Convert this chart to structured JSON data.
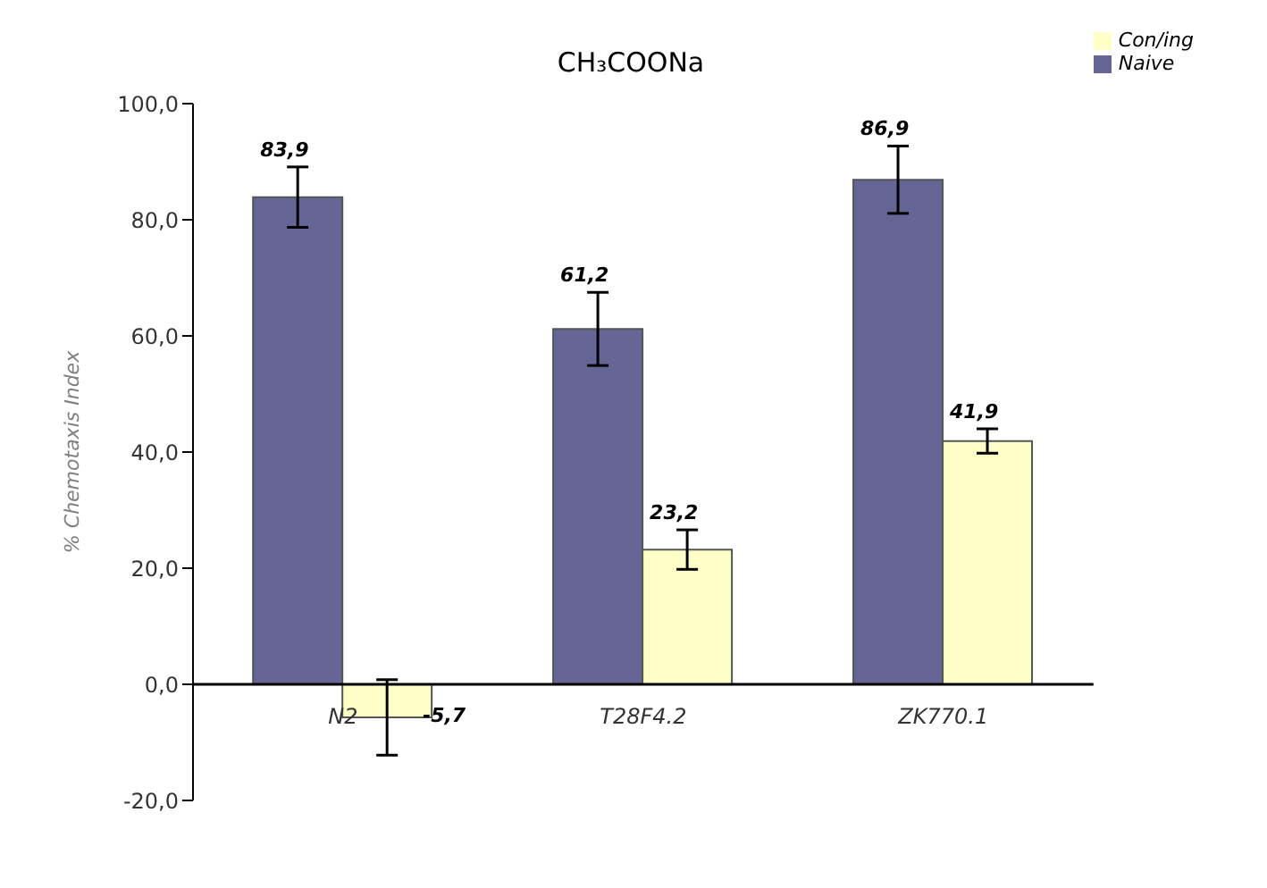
{
  "chart_data": {
    "type": "bar",
    "title": "CH₃COONa",
    "ylabel": "% Chemotaxis Index",
    "categories": [
      "N2",
      "T28F4.2",
      "ZK770.1"
    ],
    "series": [
      {
        "name": "Naive",
        "color": "#656596",
        "values": [
          83.9,
          61.2,
          86.9
        ],
        "errors": [
          5.2,
          6.3,
          5.8
        ],
        "value_labels": [
          "83,9",
          "61,2",
          "86,9"
        ]
      },
      {
        "name": "Con/ing",
        "color": "#ffffc8",
        "values": [
          -5.7,
          23.2,
          41.9
        ],
        "errors": [
          6.5,
          3.4,
          2.1
        ],
        "value_labels": [
          "-5,7",
          "23,2",
          "41,9"
        ]
      }
    ],
    "ylim": [
      -20,
      100
    ],
    "yticks": [
      {
        "value": -20,
        "label": "-20,0"
      },
      {
        "value": 0,
        "label": "0,0"
      },
      {
        "value": 20,
        "label": "20,0"
      },
      {
        "value": 40,
        "label": "40,0"
      },
      {
        "value": 60,
        "label": "60,0"
      },
      {
        "value": 80,
        "label": "80,0"
      },
      {
        "value": 100,
        "label": "100,0"
      }
    ],
    "grid": false,
    "legend": "top right"
  }
}
